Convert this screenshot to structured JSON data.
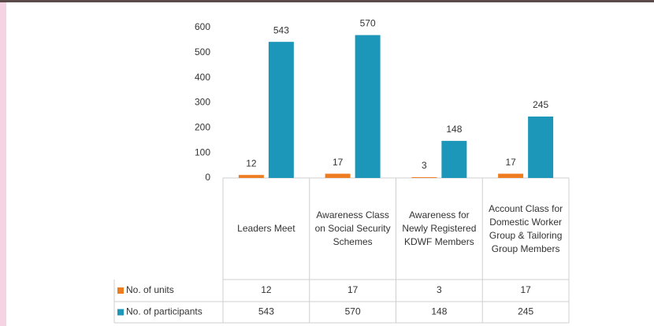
{
  "chart_data": {
    "type": "bar",
    "categories": [
      "Leaders Meet",
      "Awareness Class on Social Security Schemes",
      "Awareness for Newly Registered KDWF Members",
      "Account Class for Domestic Worker Group & Tailoring Group Members"
    ],
    "series": [
      {
        "name": "No. of units",
        "color": "#ee7d22",
        "values": [
          12,
          17,
          3,
          17
        ]
      },
      {
        "name": "No. of participants",
        "color": "#1c97b9",
        "values": [
          543,
          570,
          148,
          245
        ]
      }
    ],
    "ylim": [
      0,
      600
    ],
    "yticks": [
      0,
      100,
      200,
      300,
      400,
      500,
      600
    ],
    "grid": false
  }
}
